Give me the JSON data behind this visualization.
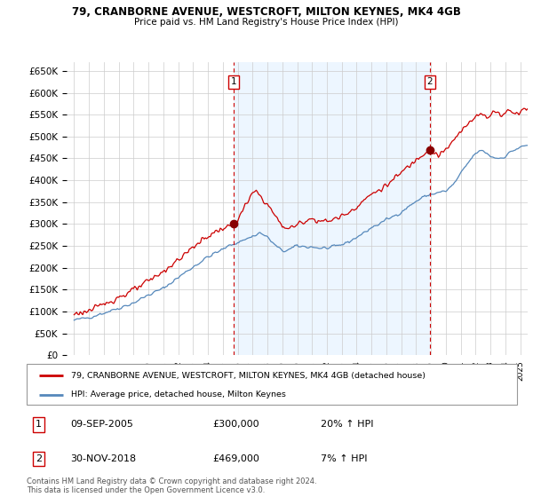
{
  "title1": "79, CRANBORNE AVENUE, WESTCROFT, MILTON KEYNES, MK4 4GB",
  "title2": "Price paid vs. HM Land Registry's House Price Index (HPI)",
  "legend_label1": "79, CRANBORNE AVENUE, WESTCROFT, MILTON KEYNES, MK4 4GB (detached house)",
  "legend_label2": "HPI: Average price, detached house, Milton Keynes",
  "annotation1": {
    "num": "1",
    "date": "09-SEP-2005",
    "price": "£300,000",
    "hpi": "20% ↑ HPI"
  },
  "annotation2": {
    "num": "2",
    "date": "30-NOV-2018",
    "price": "£469,000",
    "hpi": "7% ↑ HPI"
  },
  "footer": "Contains HM Land Registry data © Crown copyright and database right 2024.\nThis data is licensed under the Open Government Licence v3.0.",
  "color_property": "#cc0000",
  "color_hpi": "#5588bb",
  "color_fill": "#ddeeff",
  "ylim": [
    0,
    670000
  ],
  "yticks": [
    0,
    50000,
    100000,
    150000,
    200000,
    250000,
    300000,
    350000,
    400000,
    450000,
    500000,
    550000,
    600000,
    650000
  ],
  "vline1_x": 2005.75,
  "vline2_x": 2018.92,
  "marker1_y": 300000,
  "marker2_y": 469000,
  "xlim": [
    1994.5,
    2025.5
  ],
  "xticks_start": 1995,
  "xticks_end": 2025
}
